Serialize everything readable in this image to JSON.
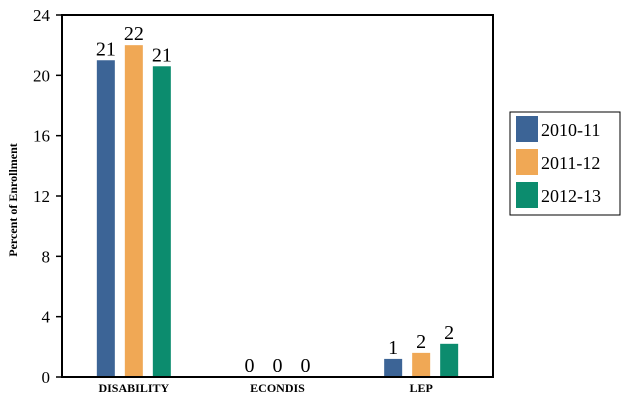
{
  "chart_data": {
    "type": "bar",
    "title": "",
    "xlabel": "",
    "ylabel": "Percent of Enrollment",
    "ylim": [
      0,
      24
    ],
    "yticks": [
      0,
      4,
      8,
      12,
      16,
      20,
      24
    ],
    "categories": [
      "DISABILITY",
      "ECONDIS",
      "LEP"
    ],
    "series": [
      {
        "name": "2010-11",
        "color": "#3c6496",
        "values": [
          21.0,
          0,
          1.2
        ],
        "labels": [
          "21",
          "0",
          "1"
        ]
      },
      {
        "name": "2011-12",
        "color": "#f0a855",
        "values": [
          22.0,
          0,
          1.6
        ],
        "labels": [
          "22",
          "0",
          "2"
        ]
      },
      {
        "name": "2012-13",
        "color": "#0c8c6e",
        "values": [
          20.6,
          0,
          2.2
        ],
        "labels": [
          "21",
          "0",
          "2"
        ]
      }
    ],
    "grid": false,
    "legend_position": "right"
  }
}
